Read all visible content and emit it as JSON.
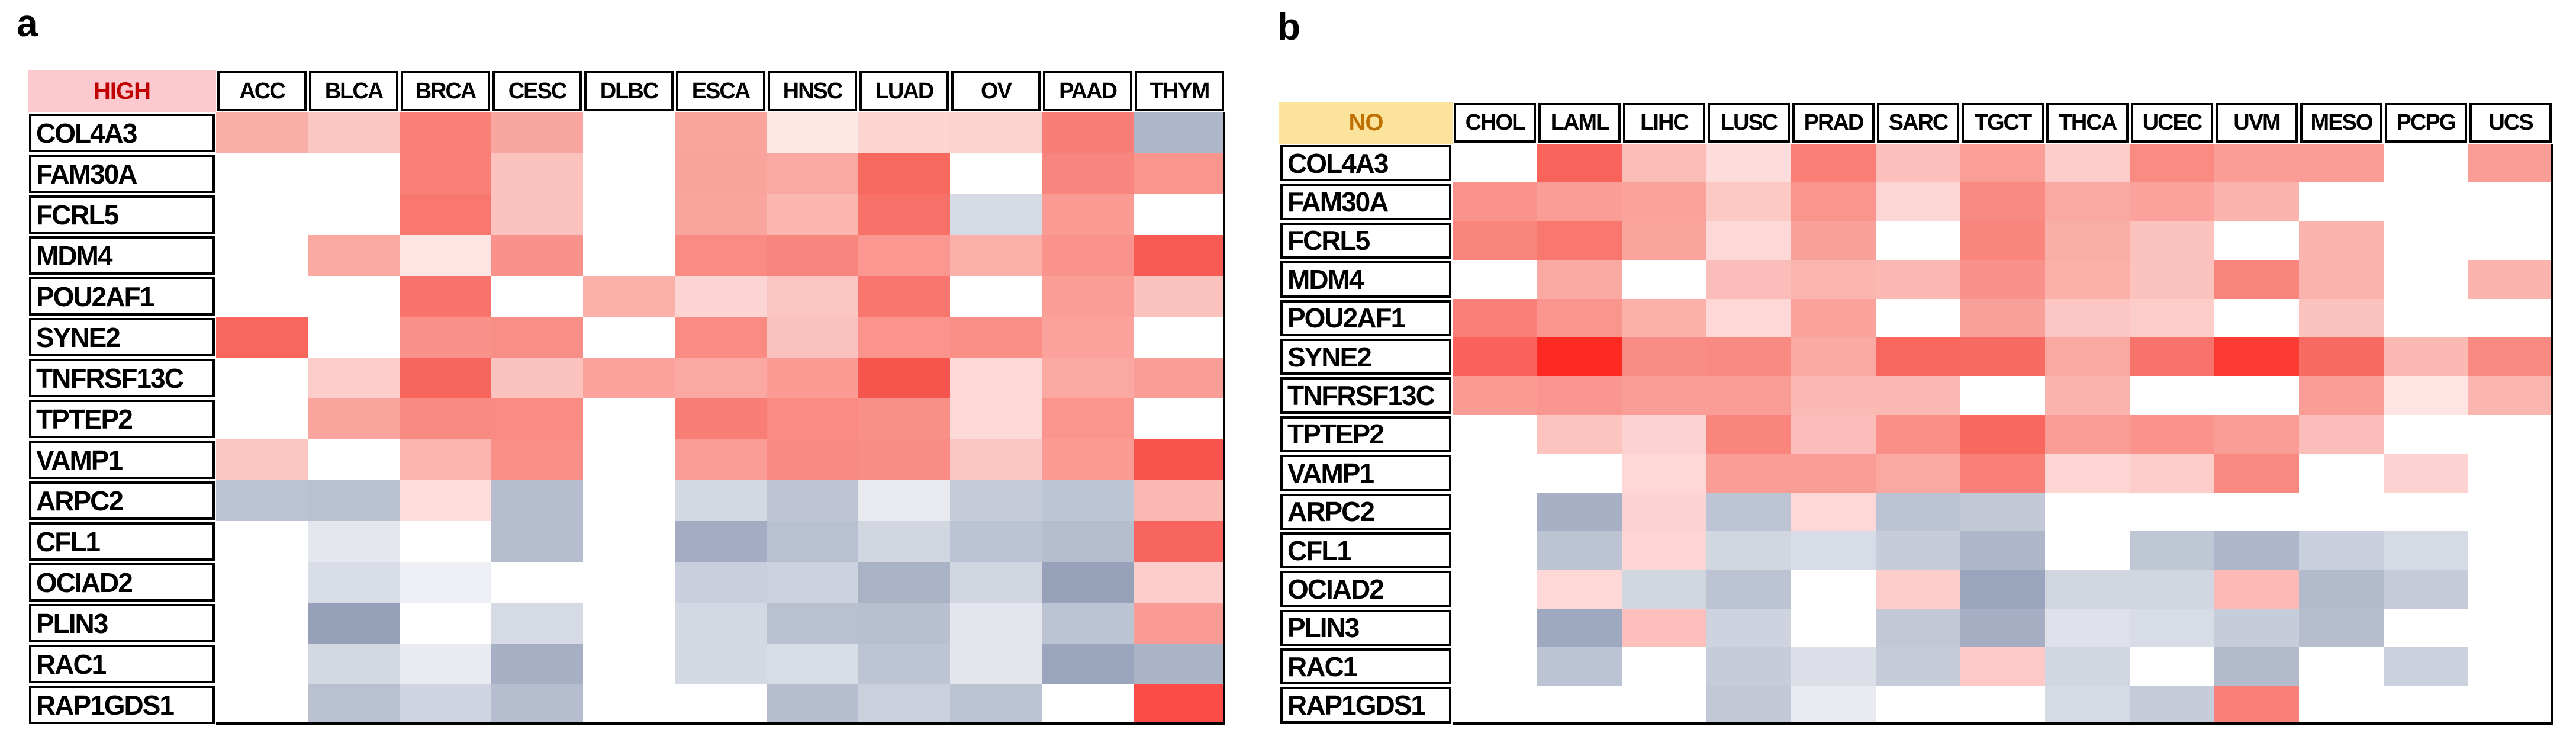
{
  "chart_data": [
    {
      "type": "heatmap",
      "panel_label": "a",
      "corner_label": "HIGH",
      "corner_style": {
        "bg": "#FBC9CE",
        "text": "#C00000"
      },
      "columns": [
        "ACC",
        "BLCA",
        "BRCA",
        "CESC",
        "DLBC",
        "ESCA",
        "HNSC",
        "LUAD",
        "OV",
        "PAAD",
        "THYM"
      ],
      "rows": [
        "COL4A3",
        "FAM30A",
        "FCRL5",
        "MDM4",
        "POU2AF1",
        "SYNE2",
        "TNFRSF13C",
        "TPTEP2",
        "VAMP1",
        "ARPC2",
        "CFL1",
        "OCIAD2",
        "PLIN3",
        "RAC1",
        "RAP1GDS1"
      ],
      "cell_colors": [
        [
          "#FAAEA8",
          "#FBC6C2",
          "#F97F77",
          "#FAA6A0",
          "#FFFFFF",
          "#FAA49E",
          "#FDE8E6",
          "#FCD4D0",
          "#FCD2CE",
          "#F87F78",
          "#AFB8CB"
        ],
        [
          "#FFFFFF",
          "#FFFFFF",
          "#F97F77",
          "#FBC2BE",
          "#FFFFFF",
          "#FAA29C",
          "#FAA8A2",
          "#F8695F",
          "#FFFFFF",
          "#F9867E",
          "#FA958D"
        ],
        [
          "#FFFFFF",
          "#FFFFFF",
          "#F87870",
          "#FBC2BE",
          "#FFFFFF",
          "#FAA49E",
          "#FBB6B0",
          "#F87168",
          "#D6DAE4",
          "#FA9B94",
          "#FFFFFF"
        ],
        [
          "#FFFFFF",
          "#FAA8A2",
          "#FEE4E2",
          "#F9928A",
          "#FFFFFF",
          "#F98B83",
          "#F9867E",
          "#FA9790",
          "#FBB0AA",
          "#F9938B",
          "#F85B53"
        ],
        [
          "#FFFFFF",
          "#FFFFFF",
          "#F8736B",
          "#FFFFFF",
          "#FBB0AA",
          "#FCD5D2",
          "#FBC6C2",
          "#F8766E",
          "#FFFFFF",
          "#FA9D96",
          "#FBC2BE"
        ],
        [
          "#F8665E",
          "#FFFFFF",
          "#F9928A",
          "#F98E86",
          "#FFFFFF",
          "#F98B83",
          "#FBC2BE",
          "#FA948C",
          "#F98F87",
          "#FAA29B",
          "#FFFFFF"
        ],
        [
          "#FFFFFF",
          "#FCCDC9",
          "#F8655C",
          "#FBC2BE",
          "#FAA29B",
          "#FAA8A1",
          "#FA9B94",
          "#F6554E",
          "#FDD8D6",
          "#FAA8A1",
          "#FA9D96"
        ],
        [
          "#FFFFFF",
          "#FAA49D",
          "#F98A82",
          "#F98B83",
          "#FFFFFF",
          "#F87E76",
          "#F98B83",
          "#F99088",
          "#FCD8D6",
          "#F9958D",
          "#FFFFFF"
        ],
        [
          "#FBC6C2",
          "#FFFFFF",
          "#FBB5AF",
          "#F98F87",
          "#FFFFFF",
          "#FA9D96",
          "#F98A82",
          "#F98D85",
          "#FBC6C2",
          "#FA9B94",
          "#F6544C"
        ],
        [
          "#BBC2D1",
          "#B9C0D0",
          "#FDDEDC",
          "#B5BDCE",
          "#FFFFFF",
          "#D3D8E2",
          "#BFC5D4",
          "#E8EAF0",
          "#C6CCD9",
          "#BEC5D4",
          "#FBB9B3"
        ],
        [
          "#FFFFFF",
          "#E4E7EE",
          "#FFFFFF",
          "#B5BDCE",
          "#FFFFFF",
          "#A3ACC2",
          "#B9C0D0",
          "#D2D6E1",
          "#BCC3D2",
          "#B6BECE",
          "#F8655E"
        ],
        [
          "#FFFFFF",
          "#D9DDE7",
          "#EDEFF4",
          "#FFFFFF",
          "#FFFFFF",
          "#C9CFDC",
          "#CDD2DF",
          "#AAB3C6",
          "#D2D6E1",
          "#97A1BA",
          "#FDCDCB"
        ],
        [
          "#FFFFFF",
          "#96A0B9",
          "#FFFFFF",
          "#D5DAE4",
          "#FFFFFF",
          "#D3D8E3",
          "#B9C0D0",
          "#B8BFCF",
          "#E3E6ED",
          "#BCC3D2",
          "#FA9B96"
        ],
        [
          "#FFFFFF",
          "#D3D8E3",
          "#E9EBF1",
          "#A6AFC4",
          "#FFFFFF",
          "#D3D8E3",
          "#D8DCE6",
          "#BDC4D3",
          "#E3E6ED",
          "#9BA5BD",
          "#ABB4C7"
        ],
        [
          "#FFFFFF",
          "#B9C0D0",
          "#CFD4E0",
          "#B5BDCE",
          "#FFFFFF",
          "#FFFFFF",
          "#B5BDCE",
          "#CBD0DD",
          "#BCC3D2",
          "#FFFFFF",
          "#FB4C47"
        ]
      ]
    },
    {
      "type": "heatmap",
      "panel_label": "b",
      "corner_label": "NO",
      "corner_style": {
        "bg": "#FBE39C",
        "text": "#C07000"
      },
      "columns": [
        "CHOL",
        "LAML",
        "LIHC",
        "LUSC",
        "PRAD",
        "SARC",
        "TGCT",
        "THCA",
        "UCEC",
        "UVM",
        "MESO",
        "PCPG",
        "UCS"
      ],
      "rows": [
        "COL4A3",
        "FAM30A",
        "FCRL5",
        "MDM4",
        "POU2AF1",
        "SYNE2",
        "TNFRSF13C",
        "TPTEP2",
        "VAMP1",
        "ARPC2",
        "CFL1",
        "OCIAD2",
        "PLIN3",
        "RAC1",
        "RAP1GDS1"
      ],
      "cell_colors": [
        [
          "#FFFFFF",
          "#F8645C",
          "#FBBDB7",
          "#FDDDDB",
          "#F97F77",
          "#FBC0BC",
          "#FA9E97",
          "#FCCDC9",
          "#F98B83",
          "#FA9D96",
          "#FA9D96",
          "#FFFFFF",
          "#FA9D96"
        ],
        [
          "#F9938B",
          "#FA9D96",
          "#FAA29B",
          "#FCC9C5",
          "#F9958D",
          "#FCD6D4",
          "#F98A82",
          "#FAA8A2",
          "#FAA29B",
          "#FBB3AD",
          "#FFFFFF",
          "#FFFFFF",
          "#FFFFFF"
        ],
        [
          "#F9857D",
          "#F8776F",
          "#FAA49D",
          "#FDD8D6",
          "#FAA09A",
          "#FFFFFF",
          "#F9857D",
          "#FAAEA8",
          "#FBC2BE",
          "#FFFFFF",
          "#FBB3AD",
          "#FFFFFF",
          "#FFFFFF"
        ],
        [
          "#FFFFFF",
          "#FAA8A2",
          "#FFFFFF",
          "#FBBDB9",
          "#FBB5AF",
          "#FBB9B3",
          "#F9928A",
          "#FBB0AA",
          "#FBC2BE",
          "#F9857D",
          "#FBB3AD",
          "#FFFFFF",
          "#FBB3AD"
        ],
        [
          "#F98078",
          "#FA958D",
          "#FBB0AA",
          "#FDD8D6",
          "#FAA29B",
          "#FFFFFF",
          "#FAA09A",
          "#FBC6C3",
          "#FCCDC9",
          "#FFFFFF",
          "#FBC2BE",
          "#FFFFFF",
          "#FFFFFF"
        ],
        [
          "#F8625A",
          "#FD2A24",
          "#F98D85",
          "#F98A82",
          "#FBA9A3",
          "#F8665E",
          "#F86B63",
          "#FAA8A1",
          "#F8736B",
          "#FB3B34",
          "#F86B63",
          "#FBB9B3",
          "#F98A82"
        ],
        [
          "#FA9B94",
          "#FA9691",
          "#FA9D96",
          "#FA9D96",
          "#FBB9B3",
          "#FBB9B3",
          "#FFFFFF",
          "#FBB3AD",
          "#FFFFFF",
          "#FFFFFF",
          "#FA9D96",
          "#FEE4E2",
          "#FBB5AF"
        ],
        [
          "#FFFFFF",
          "#FCC3BF",
          "#FDD3D1",
          "#F9857D",
          "#FBBDB9",
          "#F98F87",
          "#F8685F",
          "#FA9D96",
          "#F9938B",
          "#FA9D96",
          "#FBBDB9",
          "#FFFFFF",
          "#FFFFFF"
        ],
        [
          "#FFFFFF",
          "#FFFFFF",
          "#FDD8D6",
          "#FA9D96",
          "#FA9D96",
          "#FAA8A1",
          "#F98078",
          "#FDD6D4",
          "#FCCDC9",
          "#F98A82",
          "#FFFFFF",
          "#FDD3D1",
          "#FFFFFF"
        ],
        [
          "#FFFFFF",
          "#A7B0C4",
          "#FDD3D1",
          "#BDC4D3",
          "#FDD8D6",
          "#BCC3D2",
          "#C2C8D6",
          "#FFFFFF",
          "#FFFFFF",
          "#FFFFFF",
          "#FFFFFF",
          "#FFFFFF",
          "#FFFFFF"
        ],
        [
          "#FFFFFF",
          "#BCC3D2",
          "#FDD6D4",
          "#D2D6E1",
          "#D8DCE6",
          "#C6CCD9",
          "#AEB7C9",
          "#FFFFFF",
          "#BFC6D4",
          "#AEB7C9",
          "#C9CFDC",
          "#D5DAE4",
          "#FFFFFF"
        ],
        [
          "#FFFFFF",
          "#FDD8D6",
          "#D2D6E1",
          "#BCC3D2",
          "#FFFFFF",
          "#FDCDCB",
          "#9AA4BC",
          "#D0D5E0",
          "#D2D6E1",
          "#FCB9B5",
          "#B2BACB",
          "#C6CCD9",
          "#FFFFFF"
        ],
        [
          "#FFFFFF",
          "#9EA8BF",
          "#FCBFBB",
          "#CED3DF",
          "#FFFFFF",
          "#C2C8D6",
          "#A5AEC3",
          "#DEE1E9",
          "#D8DCE6",
          "#C6CCD9",
          "#B6BECE",
          "#FFFFFF",
          "#FFFFFF"
        ],
        [
          "#FFFFFF",
          "#BCC3D2",
          "#FFFFFF",
          "#C6CCD9",
          "#DCDFE8",
          "#C6CCD9",
          "#FEC9C7",
          "#D2D6E1",
          "#FFFFFF",
          "#B2BACB",
          "#FFFFFF",
          "#CBD1DD",
          "#FFFFFF"
        ],
        [
          "#FFFFFF",
          "#FFFFFF",
          "#FFFFFF",
          "#C2C8D6",
          "#E8EAEF",
          "#FFFFFF",
          "#FFFFFF",
          "#D5DAE4",
          "#C6CCD9",
          "#F98078",
          "#FFFFFF",
          "#FFFFFF",
          "#FFFFFF"
        ]
      ]
    }
  ]
}
